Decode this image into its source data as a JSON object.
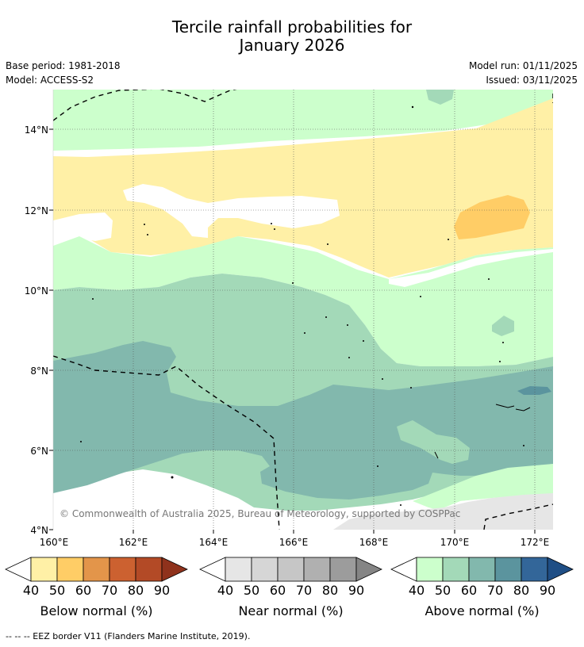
{
  "title": {
    "line1": "Tercile rainfall probabilities for",
    "line2": "January 2026"
  },
  "meta": {
    "base_period": "Base period: 1981-2018",
    "model": "Model: ACCESS-S2",
    "model_run": "Model run: 01/11/2025",
    "issued": "Issued: 03/11/2025"
  },
  "map": {
    "copyright": "© Commonwealth of Australia 2025, Bureau of Meteorology, supported by COSPPac",
    "lat_labels": [
      "14°N",
      "12°N",
      "10°N",
      "8°N",
      "6°N",
      "4°N"
    ],
    "lon_labels": [
      "160°E",
      "162°E",
      "164°E",
      "166°E",
      "168°E",
      "170°E",
      "172°E"
    ]
  },
  "colorbars": [
    {
      "label": "Below normal (%)",
      "ticks": [
        "40",
        "50",
        "60",
        "70",
        "80",
        "90"
      ],
      "colors": [
        "#ffffff",
        "#fff0a6",
        "#ffcd66",
        "#e3954a",
        "#cc6130",
        "#b34a26",
        "#8f321c"
      ]
    },
    {
      "label": "Near normal (%)",
      "ticks": [
        "40",
        "50",
        "60",
        "70",
        "80",
        "90"
      ],
      "colors": [
        "#ffffff",
        "#e6e6e6",
        "#d6d6d6",
        "#c6c6c6",
        "#b0b0b0",
        "#9c9c9c",
        "#858585"
      ]
    },
    {
      "label": "Above normal (%)",
      "ticks": [
        "40",
        "50",
        "60",
        "70",
        "80",
        "90"
      ],
      "colors": [
        "#ffffff",
        "#ccffcc",
        "#a3d9b8",
        "#82b8ad",
        "#5b949e",
        "#336699",
        "#1f4e85"
      ]
    }
  ],
  "footer": "--  --  -- EEZ border V11 (Flanders Marine Institute, 2019)."
}
